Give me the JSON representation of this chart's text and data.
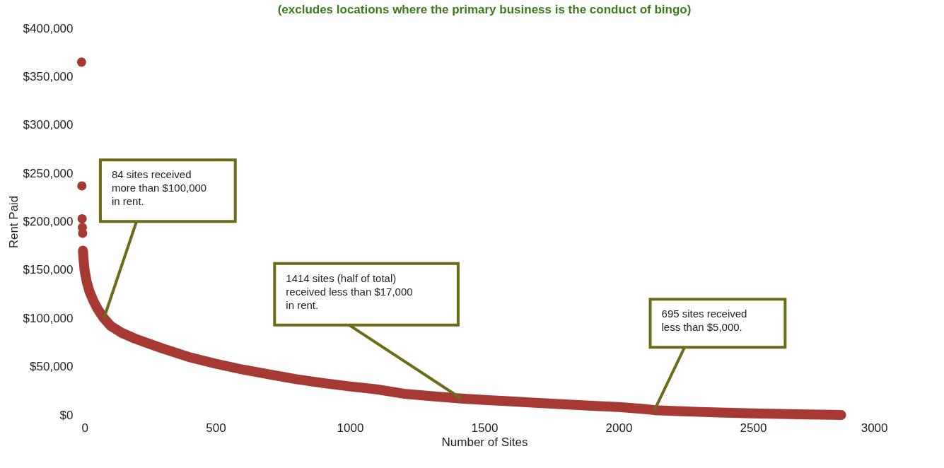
{
  "chart_data": {
    "type": "scatter",
    "title": "(excludes locations where the primary business is the conduct of bingo)",
    "xlabel": "Number of Sites",
    "ylabel": "Rent Paid",
    "xlim": [
      0,
      3000
    ],
    "xticks": [
      0,
      500,
      1000,
      1500,
      2000,
      2500,
      3000
    ],
    "ylim": [
      0,
      400000
    ],
    "yticks": [
      {
        "value": 0,
        "label": "$0"
      },
      {
        "value": 50000,
        "label": "$50,000"
      },
      {
        "value": 100000,
        "label": "$100,000"
      },
      {
        "value": 150000,
        "label": "$150,000"
      },
      {
        "value": 200000,
        "label": "$200,000"
      },
      {
        "value": 250000,
        "label": "$250,000"
      },
      {
        "value": 300000,
        "label": "$300,000"
      },
      {
        "value": 350000,
        "label": "$350,000"
      },
      {
        "value": 400000,
        "label": "$400,000"
      }
    ],
    "grid": false,
    "legend": false,
    "marker": "circle",
    "series": [
      {
        "color": "#a63a32",
        "x": [
          1,
          2,
          3,
          4,
          5
        ],
        "values": [
          365000,
          237000,
          203000,
          194000,
          188000
        ]
      },
      {
        "type": "line",
        "marker": "none",
        "color": "#a63a32",
        "x": [
          6,
          8,
          12,
          20,
          30,
          45,
          60,
          84,
          110,
          150,
          200,
          250,
          300,
          400,
          500,
          600,
          700,
          800,
          900,
          1000,
          1100,
          1200,
          1300,
          1414,
          1500,
          1600,
          1700,
          1800,
          1900,
          2000,
          2100,
          2133,
          2200,
          2300,
          2400,
          2500,
          2600,
          2700,
          2800,
          2828
        ],
        "values": [
          170000,
          162000,
          150000,
          138000,
          128000,
          118000,
          110000,
          100000,
          92000,
          85000,
          79000,
          74000,
          69000,
          60000,
          53000,
          47000,
          42000,
          37000,
          33000,
          29500,
          26500,
          22000,
          19500,
          17000,
          15500,
          14000,
          12500,
          11000,
          9500,
          8200,
          6000,
          5000,
          4200,
          3200,
          2400,
          1700,
          1100,
          600,
          200,
          0
        ]
      }
    ],
    "annotations": [
      {
        "text": "84 sites received more than $100,000 in rent.",
        "x": 84,
        "y": 100000
      },
      {
        "text": "1414 sites (half of total) received less than $17,000 in rent.",
        "x": 1414,
        "y": 17000
      },
      {
        "text": "695 sites received less than $5,000.",
        "x": 2133,
        "y": 5000
      }
    ]
  }
}
